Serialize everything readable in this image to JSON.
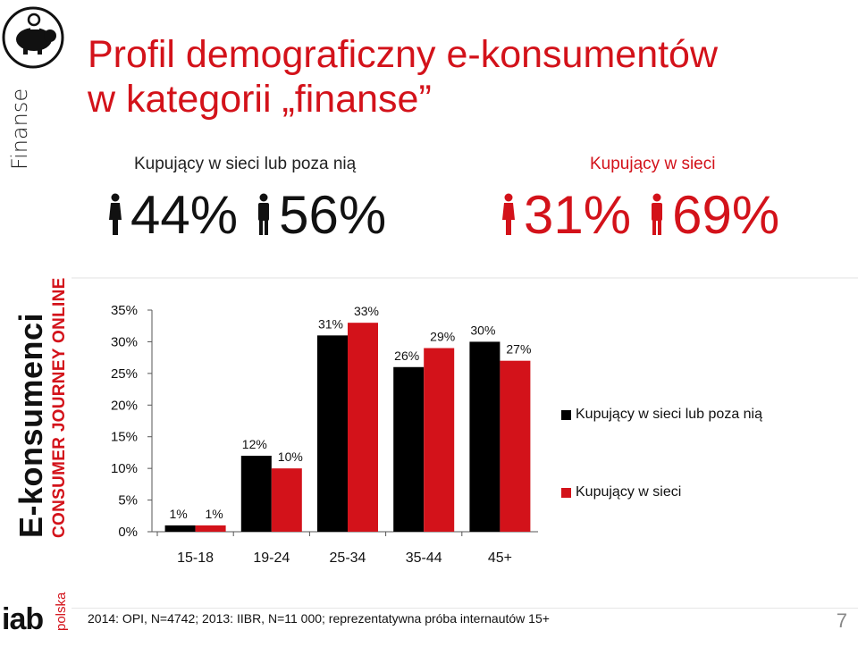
{
  "sidebar": {
    "category": "Finanse",
    "brand_main": "E-konsumenci",
    "brand_sub": "CONSUMER JOURNEY ONLINE",
    "logo_icon": "piggy-bank-icon",
    "iab_word": "iab",
    "iab_country": "polska"
  },
  "header": {
    "title_line1": "Profil demograficzny e-konsumentów",
    "title_line2": "w kategorii „finanse”"
  },
  "segments": {
    "black": {
      "label": "Kupujący w sieci lub poza nią",
      "female_pct": "44%",
      "male_pct": "56%",
      "color": "#111111"
    },
    "red": {
      "label": "Kupujący w sieci",
      "female_pct": "31%",
      "male_pct": "69%",
      "color": "#d3121a"
    }
  },
  "legend": {
    "item1": "Kupujący w sieci lub poza nią",
    "item2": "Kupujący w sieci"
  },
  "chart_data": {
    "type": "bar",
    "categories": [
      "15-18",
      "19-24",
      "25-34",
      "35-44",
      "45+"
    ],
    "series": [
      {
        "name": "Kupujący w sieci lub poza nią",
        "values": [
          1,
          12,
          31,
          26,
          30
        ],
        "labels": [
          "1%",
          "12%",
          "31%",
          "26%",
          "30%"
        ],
        "color": "#000000"
      },
      {
        "name": "Kupujący w sieci",
        "values": [
          1,
          10,
          33,
          29,
          27
        ],
        "labels": [
          "1%",
          "10%",
          "33%",
          "29%",
          "27%"
        ],
        "color": "#d3121a"
      }
    ],
    "ylim": [
      0,
      35
    ],
    "yticks": [
      "0%",
      "5%",
      "10%",
      "15%",
      "20%",
      "25%",
      "30%",
      "35%"
    ],
    "grid": false,
    "legend_position": "right"
  },
  "footer": {
    "source": "2014: OPI, N=4742; 2013: IIBR, N=11 000; reprezentatywna próba internautów 15+",
    "page_number": "7"
  }
}
